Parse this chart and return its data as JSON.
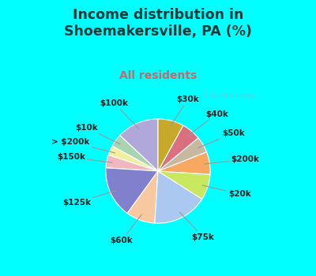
{
  "title": "Income distribution in\nShoemakersville, PA (%)",
  "subtitle": "All residents",
  "title_color": "#1a3a3a",
  "subtitle_color": "#cc6666",
  "background_color": "#00ffff",
  "watermark": "City-Data.com",
  "labels": [
    "$100k",
    "$10k",
    "> $200k",
    "$150k",
    "$125k",
    "$60k",
    "$75k",
    "$20k",
    "$200k",
    "$50k",
    "$40k",
    "$30k"
  ],
  "values": [
    13,
    4,
    3,
    4,
    16,
    9,
    17,
    8,
    7,
    5,
    6,
    8
  ],
  "colors": [
    "#b0a8d8",
    "#a8d4b0",
    "#f0f0a0",
    "#f0b8be",
    "#8080cc",
    "#f8c8a0",
    "#aac8f0",
    "#c8e860",
    "#f8a860",
    "#c8b8a0",
    "#d87080",
    "#c8a828"
  ],
  "startangle": 90,
  "label_fontsize": 7.5,
  "title_fontsize": 12.5,
  "subtitle_fontsize": 10
}
